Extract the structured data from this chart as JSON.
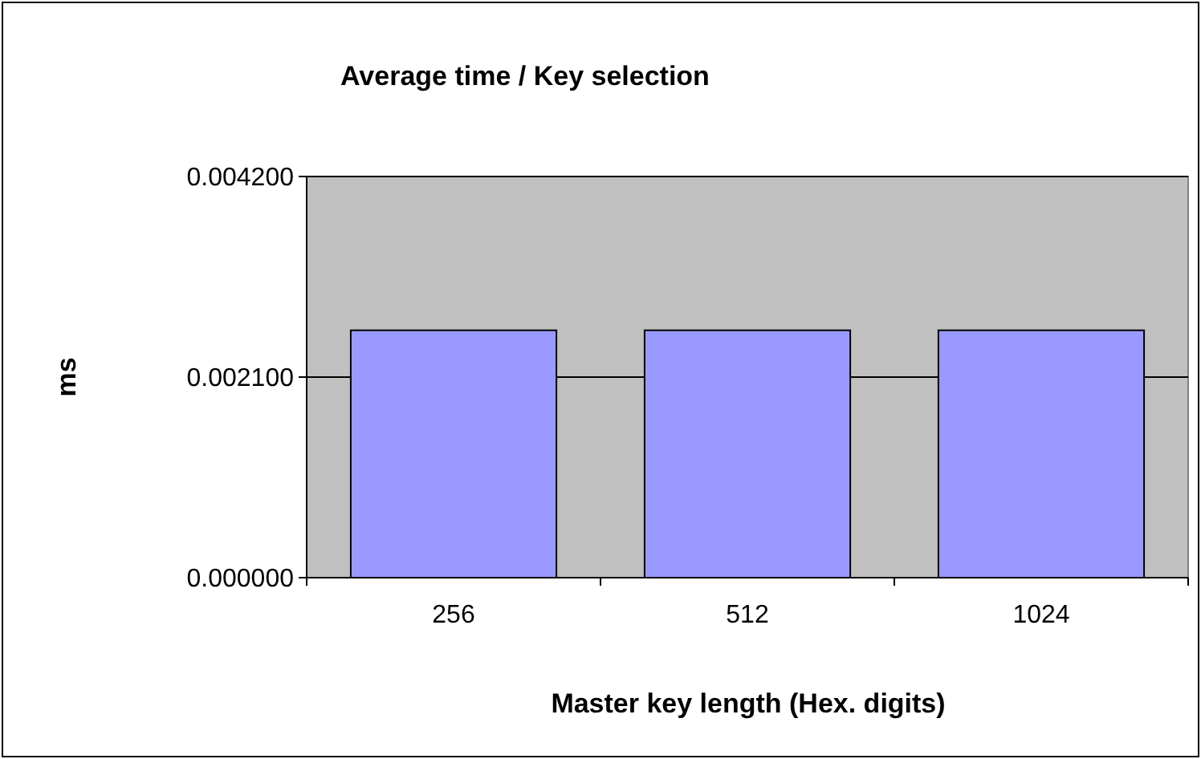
{
  "chart_data": {
    "type": "bar",
    "title": "Average time / Key selection",
    "xlabel": "Master key length (Hex. digits)",
    "ylabel": "ms",
    "categories": [
      "256",
      "512",
      "1024"
    ],
    "values": [
      0.00259,
      0.00259,
      0.00259
    ],
    "color": "#9999ff",
    "ylim": [
      0,
      0.0042
    ],
    "yticks": [
      {
        "value": 0,
        "label": "0.000000"
      },
      {
        "value": 0.0021,
        "label": "0.002100"
      },
      {
        "value": 0.0042,
        "label": "0.004200"
      }
    ],
    "grid": "y"
  }
}
